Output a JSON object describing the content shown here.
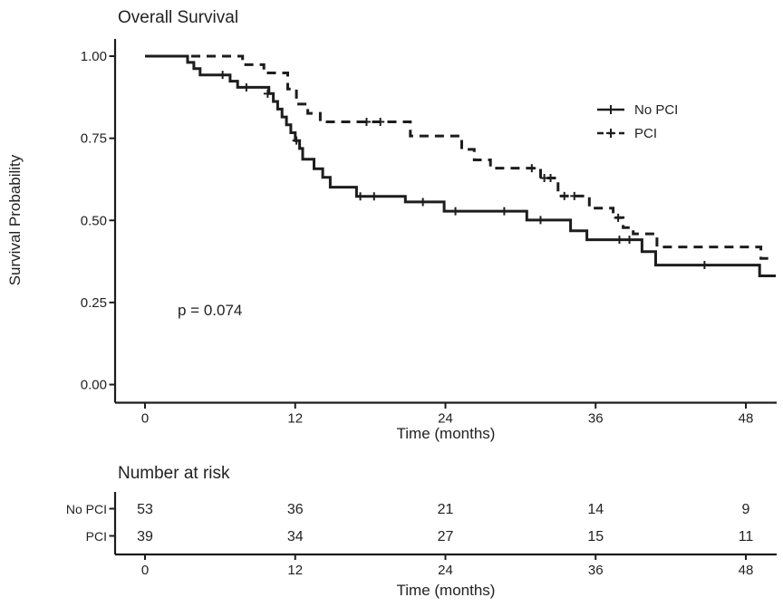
{
  "chart_data": {
    "type": "line",
    "subtype": "kaplan_meier_step",
    "title": "Overall Survival",
    "xlabel": "Time (months)",
    "ylabel": "Survival Probability",
    "pvalue_label": "p = 0.074",
    "xticks": [
      0,
      12,
      24,
      36,
      48
    ],
    "yticks": [
      0,
      0.25,
      0.5,
      0.75,
      1.0
    ],
    "ytick_labels": [
      "0.00",
      "0.25",
      "0.50",
      "0.75",
      "1.00"
    ],
    "xlim": [
      -2.4,
      50.5
    ],
    "ylim": [
      0,
      1.05
    ],
    "grid": false,
    "legend_position": "inside-right",
    "colors": {
      "line": "#1d1d1d",
      "axis": "#1d1d1d",
      "text": "#222222"
    },
    "series": [
      {
        "name": "No PCI",
        "line_style": "solid",
        "steps": [
          [
            0,
            1.0
          ],
          [
            3.4,
            0.981
          ],
          [
            3.9,
            0.962
          ],
          [
            4.4,
            0.943
          ],
          [
            6.8,
            0.924
          ],
          [
            7.4,
            0.905
          ],
          [
            9.9,
            0.886
          ],
          [
            10.25,
            0.862
          ],
          [
            10.6,
            0.839
          ],
          [
            10.95,
            0.815
          ],
          [
            11.3,
            0.791
          ],
          [
            11.65,
            0.767
          ],
          [
            12.0,
            0.743
          ],
          [
            12.35,
            0.719
          ],
          [
            12.6,
            0.686
          ],
          [
            13.5,
            0.657
          ],
          [
            14.2,
            0.631
          ],
          [
            14.8,
            0.601
          ],
          [
            16.9,
            0.573
          ],
          [
            20.8,
            0.556
          ],
          [
            23.9,
            0.528
          ],
          [
            30.5,
            0.501
          ],
          [
            34.0,
            0.468
          ],
          [
            35.3,
            0.441
          ],
          [
            39.7,
            0.405
          ],
          [
            40.8,
            0.364
          ],
          [
            49.1,
            0.331
          ],
          [
            50.4,
            0.331
          ]
        ],
        "censor_marks": [
          [
            6.2,
            0.943
          ],
          [
            8.1,
            0.905
          ],
          [
            9.8,
            0.886
          ],
          [
            12.1,
            0.743
          ],
          [
            17.2,
            0.573
          ],
          [
            18.3,
            0.573
          ],
          [
            22.2,
            0.556
          ],
          [
            24.8,
            0.528
          ],
          [
            28.7,
            0.528
          ],
          [
            31.6,
            0.501
          ],
          [
            37.9,
            0.441
          ],
          [
            38.7,
            0.441
          ],
          [
            44.7,
            0.364
          ]
        ]
      },
      {
        "name": "PCI",
        "line_style": "dashed",
        "steps": [
          [
            0,
            1.0
          ],
          [
            7.8,
            0.974
          ],
          [
            9.5,
            0.949
          ],
          [
            11.4,
            0.9
          ],
          [
            12.1,
            0.854
          ],
          [
            13.0,
            0.826
          ],
          [
            14.0,
            0.8
          ],
          [
            21.2,
            0.757
          ],
          [
            25.3,
            0.716
          ],
          [
            26.3,
            0.684
          ],
          [
            27.6,
            0.659
          ],
          [
            31.6,
            0.629
          ],
          [
            33.0,
            0.574
          ],
          [
            35.5,
            0.537
          ],
          [
            37.4,
            0.508
          ],
          [
            38.2,
            0.478
          ],
          [
            39.0,
            0.459
          ],
          [
            40.9,
            0.419
          ],
          [
            49.2,
            0.384
          ],
          [
            49.8,
            0.384
          ]
        ],
        "censor_marks": [
          [
            17.7,
            0.8
          ],
          [
            18.8,
            0.8
          ],
          [
            30.9,
            0.659
          ],
          [
            31.9,
            0.629
          ],
          [
            32.4,
            0.629
          ],
          [
            33.5,
            0.574
          ],
          [
            34.3,
            0.574
          ],
          [
            37.8,
            0.508
          ]
        ]
      }
    ],
    "risk_table": {
      "title": "Number at risk",
      "xlabel": "Time (months)",
      "times": [
        0,
        12,
        24,
        36,
        48
      ],
      "rows": [
        {
          "label": "No PCI",
          "values": [
            53,
            36,
            21,
            14,
            9
          ]
        },
        {
          "label": "PCI",
          "values": [
            39,
            34,
            27,
            15,
            11
          ]
        }
      ]
    }
  }
}
